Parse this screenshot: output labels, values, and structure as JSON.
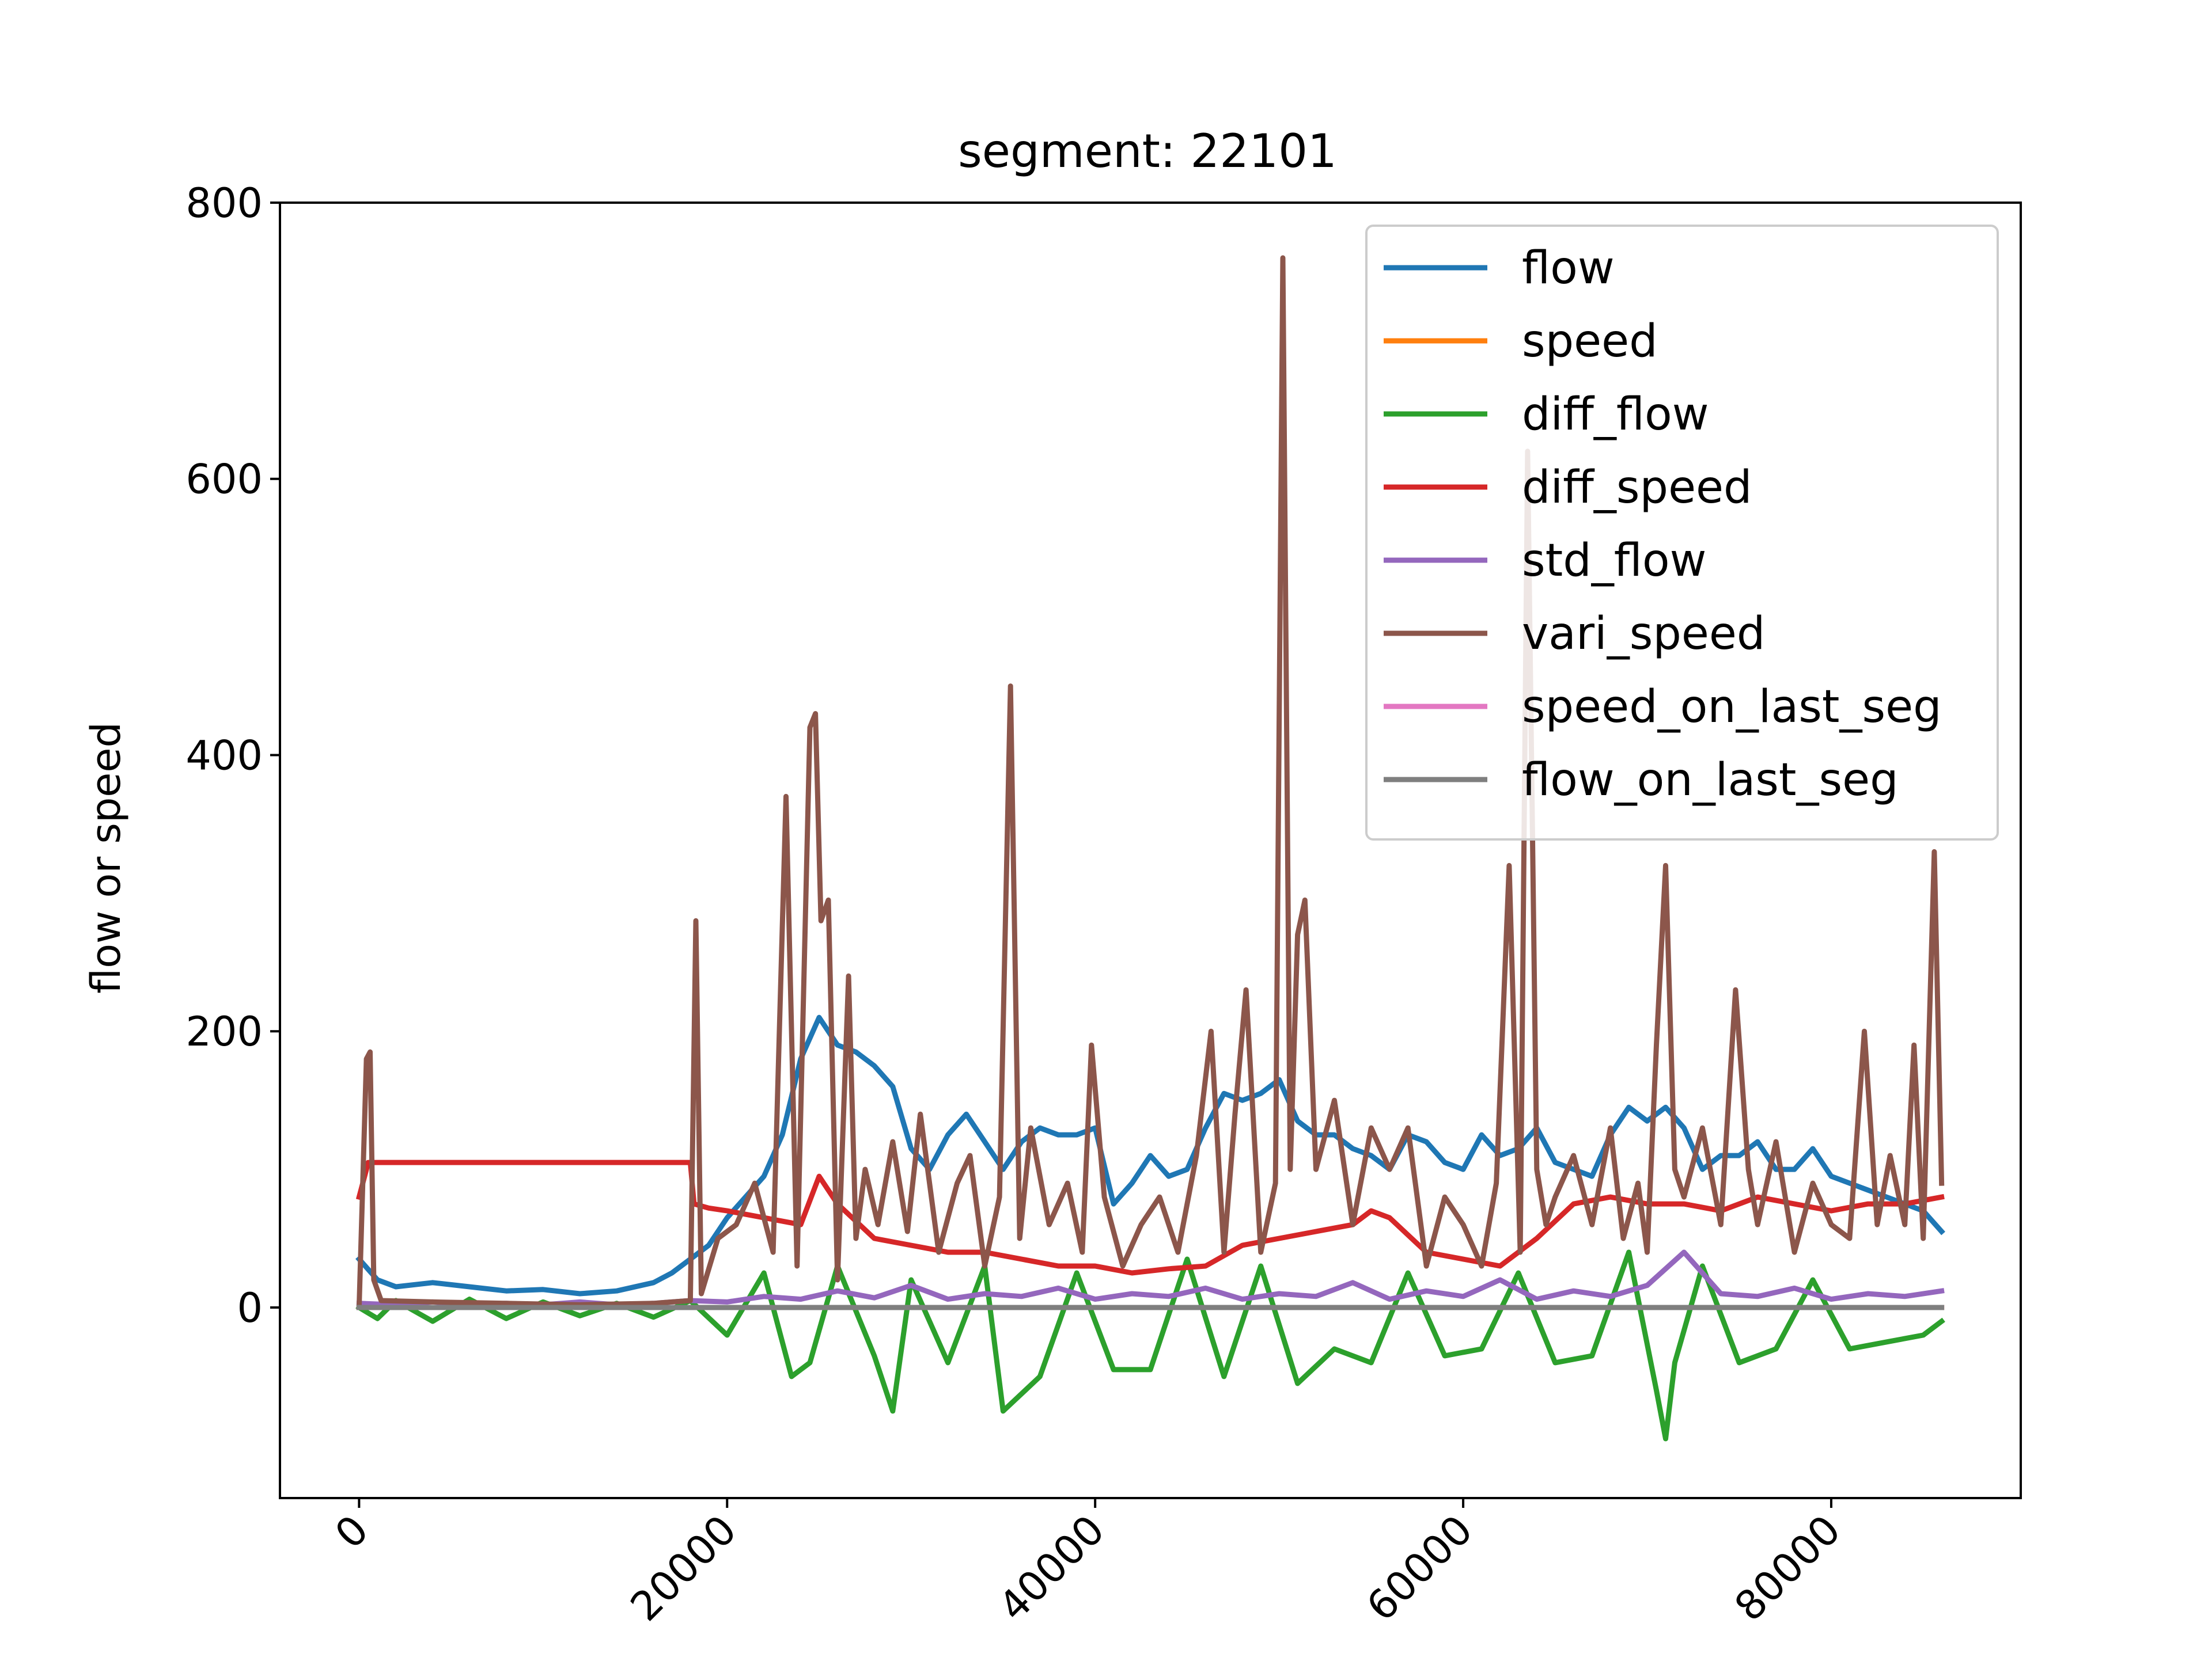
{
  "chart_data": {
    "type": "line",
    "title": "segment: 22101",
    "xlabel": "",
    "ylabel": "flow or speed",
    "xlim": [
      -4300,
      90300
    ],
    "ylim": [
      -138,
      800
    ],
    "x_ticks": [
      0,
      20000,
      40000,
      60000,
      80000
    ],
    "x_tick_labels": [
      "0",
      "20000",
      "40000",
      "60000",
      "80000"
    ],
    "x_tick_rotation_deg": 45,
    "y_ticks": [
      0,
      200,
      400,
      600,
      800
    ],
    "y_tick_labels": [
      "0",
      "200",
      "400",
      "600",
      "800"
    ],
    "grid": false,
    "legend_position": "upper right",
    "series": [
      {
        "name": "flow",
        "color": "#1f77b4",
        "x": [
          0,
          1000,
          2000,
          4000,
          6000,
          8000,
          10000,
          12000,
          14000,
          16000,
          17000,
          18000,
          19000,
          20000,
          21000,
          22000,
          23000,
          24000,
          25000,
          26000,
          27000,
          28000,
          29000,
          30000,
          31000,
          32000,
          33000,
          34000,
          35000,
          36000,
          37000,
          38000,
          39000,
          40000,
          41000,
          42000,
          43000,
          44000,
          45000,
          46000,
          47000,
          48000,
          49000,
          50000,
          51000,
          52000,
          53000,
          54000,
          55000,
          56000,
          57000,
          58000,
          59000,
          60000,
          61000,
          62000,
          63000,
          64000,
          65000,
          66000,
          67000,
          68000,
          69000,
          70000,
          71000,
          72000,
          73000,
          74000,
          75000,
          76000,
          77000,
          78000,
          79000,
          80000,
          81000,
          82000,
          83000,
          84000,
          85000,
          86000
        ],
        "y": [
          35,
          20,
          15,
          18,
          15,
          12,
          13,
          10,
          12,
          18,
          25,
          35,
          45,
          65,
          80,
          95,
          125,
          180,
          210,
          190,
          185,
          175,
          160,
          115,
          100,
          125,
          140,
          120,
          100,
          120,
          130,
          125,
          125,
          130,
          75,
          90,
          110,
          95,
          100,
          130,
          155,
          150,
          155,
          165,
          135,
          125,
          125,
          115,
          110,
          100,
          125,
          120,
          105,
          100,
          125,
          110,
          115,
          130,
          105,
          100,
          95,
          125,
          145,
          135,
          145,
          130,
          100,
          110,
          110,
          120,
          100,
          100,
          115,
          95,
          90,
          85,
          80,
          75,
          70,
          55
        ]
      },
      {
        "name": "speed",
        "color": "#ff7f0e",
        "x": [
          0,
          86000
        ],
        "y": [
          0,
          0
        ]
      },
      {
        "name": "diff_flow",
        "color": "#2ca02c",
        "x": [
          0,
          1000,
          2000,
          4000,
          6000,
          8000,
          10000,
          12000,
          14000,
          16000,
          18000,
          20000,
          22000,
          23500,
          24500,
          26000,
          28000,
          29000,
          30000,
          32000,
          34000,
          35000,
          37000,
          39000,
          41000,
          43000,
          45000,
          47000,
          49000,
          51000,
          53000,
          55000,
          57000,
          59000,
          61000,
          63000,
          65000,
          67000,
          69000,
          70500,
          71000,
          71500,
          73000,
          75000,
          77000,
          79000,
          81000,
          83000,
          85000,
          86000
        ],
        "y": [
          0,
          -8,
          5,
          -10,
          6,
          -8,
          4,
          -6,
          3,
          -7,
          5,
          -20,
          25,
          -50,
          -40,
          30,
          -35,
          -75,
          20,
          -40,
          30,
          -75,
          -50,
          25,
          -45,
          -45,
          35,
          -50,
          30,
          -55,
          -30,
          -40,
          25,
          -35,
          -30,
          25,
          -40,
          -35,
          40,
          -60,
          -95,
          -40,
          30,
          -40,
          -30,
          20,
          -30,
          -25,
          -20,
          -10
        ]
      },
      {
        "name": "diff_speed",
        "color": "#d62728",
        "x": [
          0,
          500,
          1000,
          18000,
          18200,
          19000,
          20000,
          22000,
          24000,
          25000,
          26000,
          28000,
          30000,
          32000,
          34000,
          36000,
          38000,
          40000,
          42000,
          44000,
          46000,
          48000,
          50000,
          52000,
          54000,
          55000,
          56000,
          58000,
          60000,
          62000,
          64000,
          66000,
          68000,
          70000,
          72000,
          74000,
          76000,
          78000,
          80000,
          82000,
          84000,
          86000
        ],
        "y": [
          80,
          105,
          105,
          105,
          75,
          72,
          70,
          65,
          60,
          95,
          75,
          50,
          45,
          40,
          40,
          35,
          30,
          30,
          25,
          28,
          30,
          45,
          50,
          55,
          60,
          70,
          65,
          40,
          35,
          30,
          50,
          75,
          80,
          75,
          75,
          70,
          80,
          75,
          70,
          75,
          75,
          80
        ]
      },
      {
        "name": "std_flow",
        "color": "#9467bd",
        "x": [
          0,
          2000,
          4000,
          6000,
          8000,
          10000,
          12000,
          14000,
          16000,
          18000,
          20000,
          22000,
          24000,
          26000,
          28000,
          30000,
          32000,
          34000,
          36000,
          38000,
          40000,
          42000,
          44000,
          46000,
          48000,
          50000,
          52000,
          54000,
          56000,
          58000,
          60000,
          62000,
          64000,
          66000,
          68000,
          70000,
          72000,
          74000,
          76000,
          78000,
          80000,
          82000,
          84000,
          86000
        ],
        "y": [
          3,
          2,
          4,
          2,
          3,
          2,
          4,
          2,
          3,
          5,
          4,
          8,
          6,
          12,
          7,
          16,
          6,
          10,
          8,
          14,
          6,
          10,
          8,
          14,
          6,
          10,
          8,
          18,
          6,
          12,
          8,
          20,
          6,
          12,
          8,
          16,
          40,
          10,
          8,
          14,
          6,
          10,
          8,
          12
        ]
      },
      {
        "name": "vari_speed",
        "color": "#8c564b",
        "x": [
          0,
          400,
          600,
          800,
          1200,
          4000,
          8000,
          12000,
          16000,
          18000,
          18300,
          18600,
          19500,
          20500,
          21500,
          22500,
          23200,
          23800,
          24500,
          24800,
          25100,
          25500,
          26000,
          26600,
          27000,
          27500,
          28200,
          29000,
          29800,
          30500,
          31500,
          32500,
          33200,
          34000,
          34800,
          35400,
          35900,
          36500,
          37500,
          38500,
          39300,
          39800,
          40500,
          41500,
          42500,
          43500,
          44500,
          45500,
          46300,
          47000,
          47600,
          48200,
          49000,
          49800,
          50200,
          50600,
          51000,
          51400,
          52000,
          53000,
          54000,
          55000,
          56000,
          57000,
          58000,
          59000,
          60000,
          61000,
          61800,
          62500,
          63100,
          63500,
          64000,
          64500,
          65000,
          66000,
          67000,
          68000,
          68700,
          69500,
          70000,
          70500,
          71000,
          71500,
          72000,
          73000,
          74000,
          74800,
          75500,
          76000,
          77000,
          78000,
          79000,
          80000,
          81000,
          81800,
          82500,
          83200,
          84000,
          84500,
          85000,
          85600,
          86000
        ],
        "y": [
          0,
          180,
          185,
          20,
          5,
          4,
          3,
          2,
          3,
          5,
          280,
          10,
          50,
          60,
          90,
          40,
          370,
          30,
          420,
          430,
          280,
          295,
          20,
          240,
          50,
          100,
          60,
          120,
          55,
          140,
          40,
          90,
          110,
          30,
          80,
          450,
          50,
          130,
          60,
          90,
          40,
          190,
          80,
          30,
          60,
          80,
          40,
          110,
          200,
          40,
          140,
          230,
          40,
          90,
          760,
          100,
          270,
          295,
          100,
          150,
          60,
          130,
          100,
          130,
          30,
          80,
          60,
          30,
          90,
          320,
          40,
          620,
          100,
          60,
          80,
          110,
          60,
          130,
          50,
          90,
          40,
          190,
          320,
          100,
          80,
          130,
          60,
          230,
          100,
          60,
          120,
          40,
          90,
          60,
          50,
          200,
          60,
          110,
          60,
          190,
          50,
          330,
          90
        ]
      },
      {
        "name": "speed_on_last_seg",
        "color": "#e377c2",
        "x": [
          0,
          86000
        ],
        "y": [
          0,
          0
        ]
      },
      {
        "name": "flow_on_last_seg",
        "color": "#7f7f7f",
        "x": [
          0,
          86000
        ],
        "y": [
          0,
          0
        ]
      }
    ]
  }
}
